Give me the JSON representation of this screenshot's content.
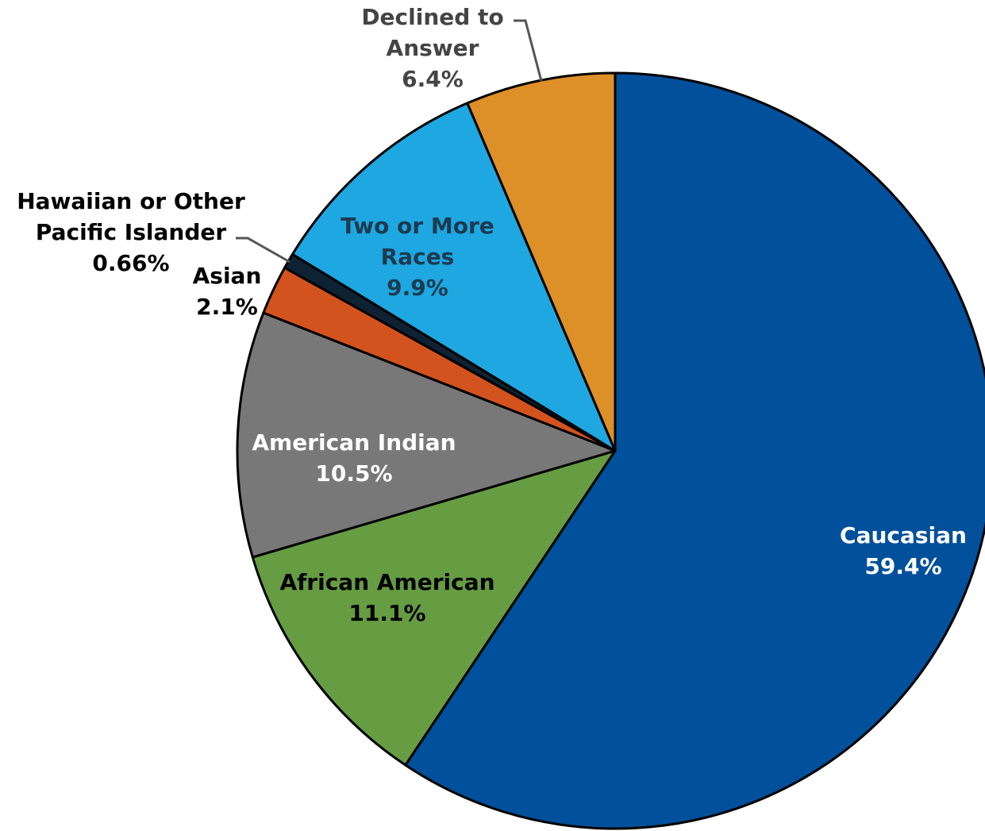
{
  "chart_data": {
    "type": "pie",
    "title": "",
    "start_angle_deg": 0,
    "direction": "clockwise",
    "slices": [
      {
        "name": "Caucasian",
        "value": 59.4,
        "label": "59.4%",
        "color": "#00509B",
        "label_color": "#ffffff"
      },
      {
        "name": "African American",
        "value": 11.1,
        "label": "11.1%",
        "color": "#669C42",
        "label_color": "#000000"
      },
      {
        "name": "American Indian",
        "value": 10.5,
        "label": "10.5%",
        "color": "#787878",
        "label_color": "#ffffff"
      },
      {
        "name": "Asian",
        "value": 2.1,
        "label": "2.1%",
        "color": "#D3531E",
        "label_color": "#000000"
      },
      {
        "name": "Hawaiian or Other Pacific Islander",
        "value": 0.66,
        "label": "0.66%",
        "color": "#0E2233",
        "label_color": "#000000"
      },
      {
        "name": "Two or More Races",
        "value": 9.9,
        "label": "9.9%",
        "color": "#1EA7E1",
        "label_color": "#1C3A4F"
      },
      {
        "name": "Declined to Answer",
        "value": 6.4,
        "label": "6.4%",
        "color": "#DD8F28",
        "label_color": "#444444"
      }
    ]
  }
}
